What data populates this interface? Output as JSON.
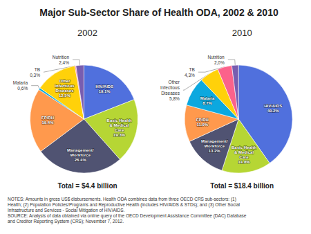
{
  "title": "Major Sub-Sector Share of Health ODA, 2002 & 2010",
  "annotations": [
    "NOTES: Amounts in gross US$ disbursements. Health ODA combines data from three OECD CRS sub-sectors: (1)",
    "Health; (2) Population Policies/Programs and Reproductive Health (includes HIV/AIDS & STDs); and (3) Other Social",
    "Infrastructure and Services - Social Mitigation of HIV/AIDS.",
    "SOURCE: Analysis of data obtained via online query of the OECD Development Assistance Committee (DAC) Database",
    "and Creditor Reporting System (CRS); November 7, 2012."
  ],
  "chart_data": [
    {
      "type": "pie",
      "title": "2002",
      "subtitle": "Total = $4.4 billion",
      "categories": [
        "HIV/AIDS",
        "Basic Health\n& Medical\nCare",
        "Management/\nWorkforce",
        "FP/RH",
        "Malaria",
        "Other\nInfectious\nDiseases",
        "TB",
        "Nutrition"
      ],
      "values": [
        19.1,
        19.3,
        26.4,
        19.4,
        0.6,
        12.5,
        0.3,
        2.4
      ],
      "value_labels": [
        "19.1%",
        "19.3%",
        "26.4%",
        "19.4%",
        "0,6%",
        "12,5%",
        "0,3%",
        "2,4%"
      ],
      "data_labels": true
    },
    {
      "type": "pie",
      "title": "2010",
      "subtitle": "Total = $18.4 billion",
      "categories": [
        "HIV/AIDS",
        "Basic Health\n& Medical\nCare",
        "Management/\nWorkforce",
        "FP/RH",
        "Malaria",
        "Other\nInfectious\nDiseases",
        "TB",
        "Nutrition"
      ],
      "values": [
        40.2,
        14.8,
        13.2,
        11.0,
        8.7,
        5.8,
        4.3,
        2.0
      ],
      "value_labels": [
        "40.2%",
        "14.8%",
        "13.2%",
        "11.0%",
        "8.7%",
        "5,8%",
        "4,3%",
        "2,0%"
      ],
      "data_labels": true
    }
  ]
}
